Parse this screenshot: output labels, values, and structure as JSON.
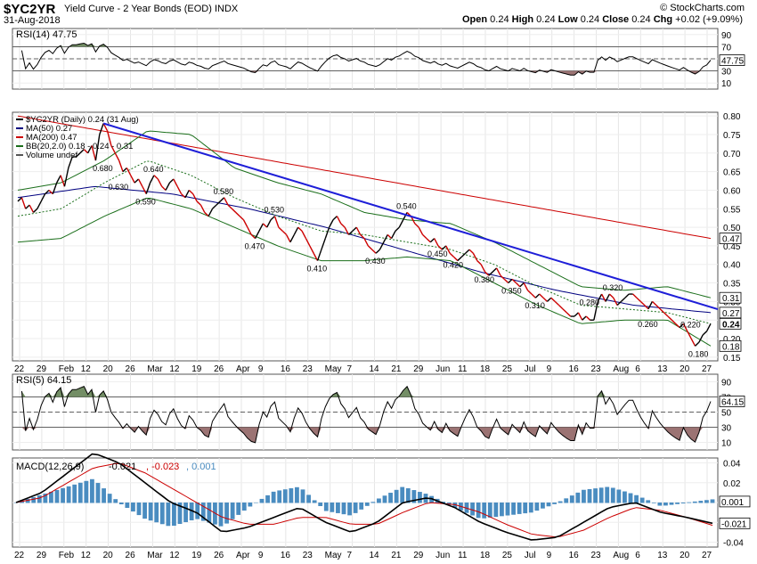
{
  "header": {
    "symbol": "$YC2YR",
    "description": "Yield Curve - 2 Year Bonds (EOD)",
    "exchange": "INDX",
    "copyright": "© StockCharts.com",
    "date": "31-Aug-2018",
    "open_label": "Open",
    "open_value": "0.24",
    "high_label": "High",
    "high_value": "0.24",
    "low_label": "Low",
    "low_value": "0.24",
    "close_label": "Close",
    "close_value": "0.24",
    "chg_label": "Chg",
    "chg_value": "+0.02 (+9.09%)"
  },
  "colors": {
    "price": "#000000",
    "price_down": "#cc0000",
    "ma50": "#000080",
    "ma200": "#cc0000",
    "bollinger": "#1a6e1a",
    "bb_mid": "#1a6e1a",
    "trendline": "#1e1ed8",
    "overbought_fill": "#5a7a4a",
    "oversold_fill": "#8a5a5a",
    "macd": "#000000",
    "macd_signal": "#cc0000",
    "histogram": "#4a8cc0"
  },
  "chart_data": [
    {
      "panel": "rsi14",
      "type": "line",
      "legend": "RSI(14) 47.75",
      "y_ticks": [
        "90",
        "70",
        "50",
        "30",
        "10"
      ],
      "ylim": [
        0,
        100
      ],
      "reference_levels": [
        70,
        50,
        30
      ],
      "last_value_label": "47.75",
      "last_value": 47.75
    },
    {
      "panel": "price",
      "type": "line",
      "legend": [
        "$YC2YR (Daily) 0.24 (31 Aug)",
        "MA(50) 0.27",
        "MA(200) 0.47",
        "BB(20,2.0) 0.18 - 0.24 - 0.31",
        "Volume undef"
      ],
      "y_ticks": [
        "0.80",
        "0.75",
        "0.70",
        "0.65",
        "0.60",
        "0.55",
        "0.50",
        "0.45",
        "0.40",
        "0.35",
        "0.30",
        "0.25",
        "0.20",
        "0.15"
      ],
      "ylim": [
        0.14,
        0.81
      ],
      "x_ticks": [
        "22",
        "29",
        "Feb",
        "12",
        "20",
        "26",
        "Mar",
        "12",
        "19",
        "26",
        "Apr",
        "9",
        "16",
        "23",
        "May",
        "7",
        "14",
        "21",
        "29",
        "Jun",
        "11",
        "18",
        "25",
        "Jul",
        "9",
        "16",
        "23",
        "Aug",
        "6",
        "13",
        "20",
        "27"
      ],
      "series_price": [
        0.57,
        0.58,
        0.55,
        0.56,
        0.54,
        0.55,
        0.57,
        0.59,
        0.6,
        0.59,
        0.62,
        0.64,
        0.61,
        0.66,
        0.69,
        0.69,
        0.7,
        0.71,
        0.7,
        0.72,
        0.68,
        0.75,
        0.78,
        0.76,
        0.72,
        0.7,
        0.68,
        0.65,
        0.66,
        0.64,
        0.62,
        0.63,
        0.61,
        0.59,
        0.62,
        0.64,
        0.63,
        0.61,
        0.6,
        0.62,
        0.63,
        0.61,
        0.59,
        0.58,
        0.6,
        0.59,
        0.57,
        0.56,
        0.54,
        0.53,
        0.55,
        0.56,
        0.57,
        0.58,
        0.56,
        0.55,
        0.54,
        0.53,
        0.52,
        0.5,
        0.48,
        0.47,
        0.49,
        0.51,
        0.5,
        0.52,
        0.53,
        0.5,
        0.49,
        0.48,
        0.46,
        0.48,
        0.5,
        0.49,
        0.47,
        0.45,
        0.43,
        0.41,
        0.44,
        0.47,
        0.5,
        0.52,
        0.53,
        0.51,
        0.5,
        0.48,
        0.49,
        0.5,
        0.48,
        0.47,
        0.45,
        0.44,
        0.43,
        0.44,
        0.46,
        0.48,
        0.47,
        0.49,
        0.5,
        0.52,
        0.54,
        0.53,
        0.51,
        0.5,
        0.48,
        0.47,
        0.46,
        0.47,
        0.45,
        0.44,
        0.45,
        0.43,
        0.42,
        0.41,
        0.42,
        0.43,
        0.44,
        0.43,
        0.41,
        0.4,
        0.38,
        0.37,
        0.38,
        0.39,
        0.37,
        0.36,
        0.35,
        0.36,
        0.35,
        0.34,
        0.35,
        0.33,
        0.32,
        0.31,
        0.32,
        0.31,
        0.3,
        0.31,
        0.3,
        0.29,
        0.28,
        0.27,
        0.26,
        0.26,
        0.27,
        0.25,
        0.26,
        0.25,
        0.25,
        0.3,
        0.32,
        0.3,
        0.32,
        0.31,
        0.29,
        0.3,
        0.31,
        0.32,
        0.32,
        0.31,
        0.3,
        0.29,
        0.28,
        0.3,
        0.29,
        0.28,
        0.27,
        0.26,
        0.25,
        0.24,
        0.23,
        0.24,
        0.22,
        0.2,
        0.18,
        0.19,
        0.21,
        0.22,
        0.24
      ],
      "annotations": [
        {
          "label": "0.680",
          "x_index": 22,
          "y": 0.68
        },
        {
          "label": "0.640",
          "x_index": 35,
          "y": 0.64
        },
        {
          "label": "0.630",
          "x_index": 26,
          "y": 0.63
        },
        {
          "label": "0.590",
          "x_index": 33,
          "y": 0.59
        },
        {
          "label": "0.580",
          "x_index": 53,
          "y": 0.58
        },
        {
          "label": "0.530",
          "x_index": 66,
          "y": 0.53
        },
        {
          "label": "0.470",
          "x_index": 61,
          "y": 0.47
        },
        {
          "label": "0.410",
          "x_index": 77,
          "y": 0.41
        },
        {
          "label": "0.540",
          "x_index": 100,
          "y": 0.54
        },
        {
          "label": "0.450",
          "x_index": 108,
          "y": 0.45
        },
        {
          "label": "0.430",
          "x_index": 92,
          "y": 0.43
        },
        {
          "label": "0.420",
          "x_index": 112,
          "y": 0.42
        },
        {
          "label": "0.380",
          "x_index": 120,
          "y": 0.38
        },
        {
          "label": "0.350",
          "x_index": 127,
          "y": 0.35
        },
        {
          "label": "0.310",
          "x_index": 133,
          "y": 0.31
        },
        {
          "label": "0.320",
          "x_index": 153,
          "y": 0.32
        },
        {
          "label": "0.280",
          "x_index": 147,
          "y": 0.28
        },
        {
          "label": "0.260",
          "x_index": 162,
          "y": 0.26
        },
        {
          "label": "0.220",
          "x_index": 173,
          "y": 0.22
        },
        {
          "label": "0.180",
          "x_index": 175,
          "y": 0.18
        }
      ],
      "ma200_values": [
        0.8,
        0.47
      ],
      "ma50_values": [
        0.58,
        0.61,
        0.59,
        0.55,
        0.5,
        0.44,
        0.38,
        0.33,
        0.29,
        0.27
      ],
      "bb_upper_values": [
        0.6,
        0.62,
        0.68,
        0.76,
        0.75,
        0.66,
        0.62,
        0.59,
        0.54,
        0.52,
        0.51,
        0.46,
        0.4,
        0.34,
        0.33,
        0.34,
        0.31
      ],
      "bb_lower_values": [
        0.46,
        0.47,
        0.53,
        0.58,
        0.55,
        0.5,
        0.45,
        0.41,
        0.41,
        0.42,
        0.41,
        0.35,
        0.29,
        0.24,
        0.25,
        0.25,
        0.18
      ],
      "bb_mid_values": [
        0.53,
        0.55,
        0.62,
        0.68,
        0.64,
        0.58,
        0.53,
        0.49,
        0.48,
        0.46,
        0.44,
        0.4,
        0.34,
        0.29,
        0.28,
        0.27,
        0.24
      ],
      "trendline": {
        "start": {
          "x_index": 22,
          "y": 0.78
        },
        "end": {
          "x_index": 180,
          "y": 0.26
        }
      },
      "last_value_labels": [
        {
          "label": "0.47",
          "y": 0.47
        },
        {
          "label": "0.31",
          "y": 0.31
        },
        {
          "label": "0.27",
          "y": 0.27
        },
        {
          "label": "0.24",
          "y": 0.24
        },
        {
          "label": "0.18",
          "y": 0.18
        }
      ]
    },
    {
      "panel": "rsi5",
      "type": "line",
      "legend": "RSI(5) 64.15",
      "y_ticks": [
        "90",
        "70",
        "50",
        "30",
        "10"
      ],
      "ylim": [
        0,
        100
      ],
      "reference_levels": [
        70,
        50,
        30
      ],
      "last_value_label": "64.15",
      "last_value": 64.15,
      "x_ticks": [
        "22",
        "29",
        "Feb",
        "12",
        "20",
        "26",
        "Mar",
        "12",
        "19",
        "26",
        "Apr",
        "9",
        "16",
        "23",
        "May",
        "7",
        "14",
        "21",
        "29",
        "Jun",
        "11",
        "18",
        "25",
        "Jul",
        "9",
        "16",
        "23",
        "Aug",
        "6",
        "13",
        "20",
        "27"
      ]
    },
    {
      "panel": "macd",
      "type": "line",
      "legend_prefix": "MACD(12,26,9)",
      "legend_macd": "-0.021",
      "legend_signal": "-0.023",
      "legend_hist": "0.001",
      "y_ticks": [
        "0.04",
        "0.02",
        "0.00",
        "-0.02",
        "-0.04"
      ],
      "ylim": [
        -0.045,
        0.045
      ],
      "macd_values": [
        0.0,
        0.01,
        0.03,
        0.05,
        0.04,
        0.02,
        0.0,
        -0.01,
        -0.03,
        -0.025,
        -0.015,
        -0.005,
        -0.02,
        -0.03,
        -0.02,
        0.0,
        0.005,
        -0.005,
        -0.02,
        -0.03,
        -0.038,
        -0.035,
        -0.02,
        -0.005,
        0.0,
        -0.01,
        -0.015,
        -0.021
      ],
      "signal_values": [
        0.0,
        0.005,
        0.02,
        0.035,
        0.04,
        0.03,
        0.015,
        0.0,
        -0.015,
        -0.022,
        -0.022,
        -0.015,
        -0.015,
        -0.022,
        -0.022,
        -0.01,
        0.0,
        -0.002,
        -0.01,
        -0.022,
        -0.032,
        -0.035,
        -0.028,
        -0.015,
        -0.005,
        -0.008,
        -0.015,
        -0.023
      ],
      "last_value_labels": [
        {
          "label": "0.001",
          "y": 0.001
        },
        {
          "label": "-0.021",
          "y": -0.021
        }
      ],
      "x_ticks": [
        "22",
        "29",
        "Feb",
        "12",
        "20",
        "26",
        "Mar",
        "12",
        "19",
        "26",
        "Apr",
        "9",
        "16",
        "23",
        "May",
        "7",
        "14",
        "21",
        "29",
        "Jun",
        "11",
        "18",
        "25",
        "Jul",
        "9",
        "16",
        "23",
        "Aug",
        "6",
        "13",
        "20",
        "27"
      ]
    }
  ]
}
